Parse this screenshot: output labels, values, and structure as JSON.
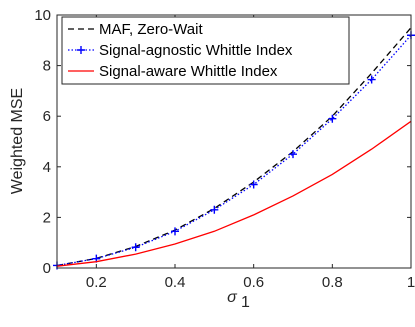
{
  "chart_data": {
    "type": "line",
    "xlabel": "σ",
    "xlabel_subscript": "1",
    "ylabel": "Weighted MSE",
    "xlim": [
      0.1,
      1
    ],
    "ylim": [
      0,
      10
    ],
    "x_ticks": [
      0.2,
      0.4,
      0.6,
      0.8,
      1
    ],
    "x_tick_labels": [
      "0.2",
      "0.4",
      "0.6",
      "0.8",
      "1"
    ],
    "y_ticks": [
      0,
      2,
      4,
      6,
      8,
      10
    ],
    "y_tick_labels": [
      "0",
      "2",
      "4",
      "6",
      "8",
      "10"
    ],
    "grid": false,
    "legend_position": "top-left",
    "series": [
      {
        "name": "MAF, Zero-Wait",
        "color": "#000000",
        "line_style": "dashed",
        "marker": "none",
        "x": [
          0.1,
          0.2,
          0.3,
          0.4,
          0.5,
          0.6,
          0.7,
          0.8,
          0.9,
          1.0
        ],
        "y": [
          0.1,
          0.38,
          0.85,
          1.5,
          2.35,
          3.4,
          4.6,
          6.0,
          7.7,
          9.5
        ]
      },
      {
        "name": "Signal-agnostic Whittle Index",
        "color": "#0000ff",
        "line_style": "dotted",
        "marker": "plus",
        "x": [
          0.1,
          0.2,
          0.3,
          0.4,
          0.5,
          0.6,
          0.7,
          0.8,
          0.9,
          1.0
        ],
        "y": [
          0.1,
          0.37,
          0.82,
          1.45,
          2.3,
          3.3,
          4.5,
          5.9,
          7.45,
          9.2
        ]
      },
      {
        "name": "Signal-aware Whittle Index",
        "color": "#ff0000",
        "line_style": "solid",
        "marker": "none",
        "x": [
          0.1,
          0.2,
          0.3,
          0.4,
          0.5,
          0.6,
          0.7,
          0.8,
          0.9,
          1.0
        ],
        "y": [
          0.07,
          0.25,
          0.55,
          0.95,
          1.45,
          2.1,
          2.85,
          3.7,
          4.7,
          5.8
        ]
      }
    ]
  }
}
